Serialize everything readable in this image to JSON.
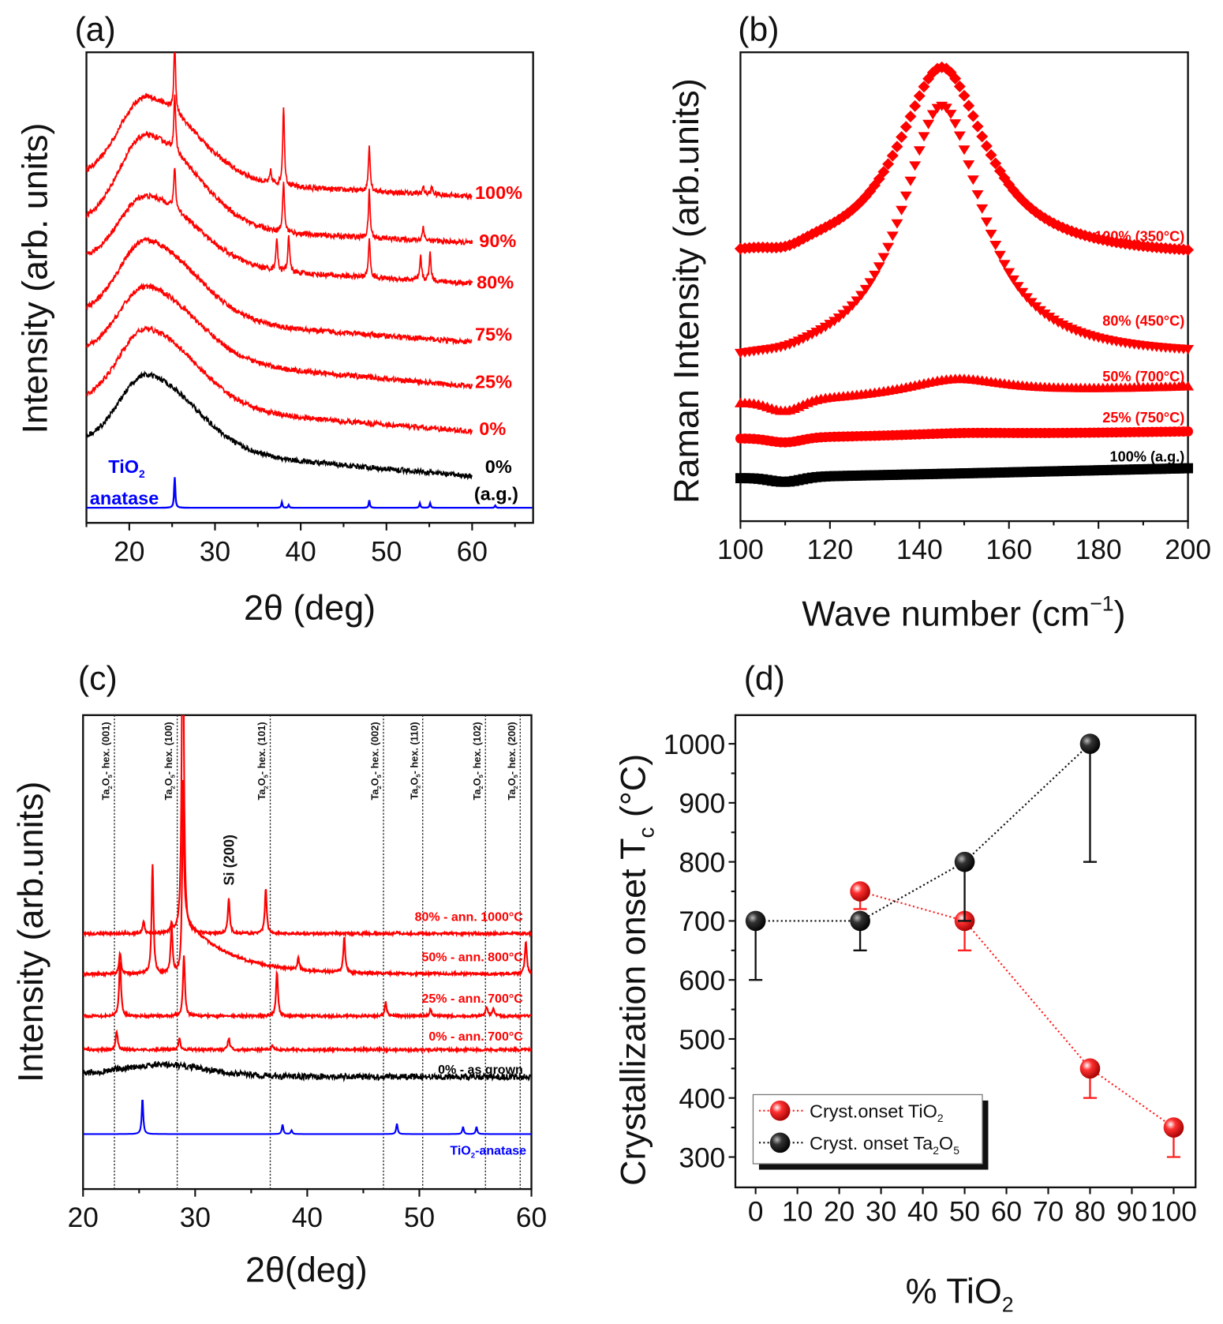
{
  "chart_data": [
    {
      "panel_label": "(a)",
      "type": "line",
      "xlabel": "2θ (deg)",
      "ylabel": "Intensity (arb. units)",
      "xlim": [
        15,
        67
      ],
      "ylim": [
        0,
        100
      ],
      "xticks": [
        20,
        30,
        40,
        50,
        60
      ],
      "series": [
        {
          "name": "100%",
          "color": "#ff0000",
          "base_start": 73.5,
          "base_end": 69.4,
          "hump_top": 90.5,
          "peaks": [
            [
              25.3,
              14
            ],
            [
              36.5,
              2.5
            ],
            [
              38.0,
              17
            ],
            [
              48.0,
              10
            ],
            [
              54.3,
              1.5
            ],
            [
              55.3,
              1.5
            ]
          ]
        },
        {
          "name": "90%",
          "color": "#ff0000",
          "base_start": 63.6,
          "base_end": 59.5,
          "hump_top": 82.4,
          "peaks": [
            [
              25.3,
              12
            ],
            [
              38.0,
              11
            ],
            [
              48.0,
              10
            ],
            [
              54.3,
              3
            ]
          ]
        },
        {
          "name": "80%",
          "color": "#ff0000",
          "base_start": 55.6,
          "base_end": 50.9,
          "hump_top": 69.5,
          "peaks": [
            [
              25.3,
              9
            ],
            [
              37.2,
              7
            ],
            [
              38.6,
              8
            ],
            [
              48.0,
              8.5
            ],
            [
              54.0,
              5
            ],
            [
              55.1,
              6
            ]
          ]
        },
        {
          "name": "75%",
          "color": "#ff0000",
          "base_start": 44.4,
          "base_end": 38.4,
          "hump_top": 60.0,
          "peaks": []
        },
        {
          "name": "25%",
          "color": "#ff0000",
          "base_start": 36.2,
          "base_end": 29.0,
          "hump_top": 50.2,
          "peaks": []
        },
        {
          "name": "0%",
          "color": "#ff0000",
          "base_start": 26.0,
          "base_end": 19.4,
          "hump_top": 41.2,
          "peaks": []
        },
        {
          "name": "0%",
          "sublabel": "(a.g.)",
          "color": "#000000",
          "base_start": 17.0,
          "base_end": 9.9,
          "hump_top": 31.4,
          "peaks": []
        }
      ],
      "reference": {
        "name": "TiO2",
        "sublabel": "anatase",
        "color": "#0000ff",
        "base": 3.2,
        "peaks": [
          [
            25.3,
            6.5
          ],
          [
            37.8,
            1.2
          ],
          [
            38.6,
            0.6
          ],
          [
            48.0,
            1.6
          ],
          [
            53.9,
            1.0
          ],
          [
            55.1,
            1.0
          ],
          [
            62.7,
            0.5
          ]
        ]
      }
    },
    {
      "panel_label": "(b)",
      "type": "scatter",
      "xlabel": "Wave number (cm-1)",
      "ylabel": "Raman Intensity (arb.units)",
      "xlim": [
        100,
        200
      ],
      "ylim": [
        0,
        100
      ],
      "xticks": [
        100,
        120,
        140,
        160,
        180,
        200
      ],
      "series": [
        {
          "name": "100% (350°C)",
          "marker": "diamond",
          "color": "#ff0000",
          "start": 55.4,
          "end": 56.0,
          "center": 145,
          "top": 96.8,
          "width": 12,
          "dip": 1.2
        },
        {
          "name": "80% (450°C)",
          "marker": "triangle-down",
          "color": "#ff0000",
          "start": 32.9,
          "end": 34.7,
          "center": 145,
          "top": 88.7,
          "width": 11,
          "dip": 0.5
        },
        {
          "name": "50% (700°C)",
          "marker": "triangle-up",
          "color": "#ff0000",
          "start": 24.8,
          "end": 28.4,
          "center": 148,
          "top": 30.2,
          "width": 14,
          "dip": 2.2
        },
        {
          "name": "25% (750°C)",
          "marker": "circle",
          "color": "#ff0000",
          "start": 17.6,
          "end": 19.1,
          "center": 150,
          "top": 18.8,
          "width": 15,
          "dip": 1.0
        },
        {
          "name": "100% (a.g.)",
          "marker": "square",
          "color": "#000000",
          "start": 9.2,
          "end": 11.3,
          "center": 150,
          "top": 10.2,
          "width": 30,
          "dip": 1.0
        }
      ]
    },
    {
      "panel_label": "(c)",
      "type": "line",
      "xlabel": "2θ(deg)",
      "ylabel": "Intensity (arb.units)",
      "xlim": [
        20,
        60
      ],
      "ylim": [
        0,
        100
      ],
      "xticks": [
        20,
        30,
        40,
        50,
        60
      ],
      "reflections": [
        {
          "two_theta": 22.8,
          "label": "Ta2O5- hex. (001)"
        },
        {
          "two_theta": 28.4,
          "label": "Ta2O5- hex. (100)"
        },
        {
          "two_theta": 36.7,
          "label": "Ta2O5- hex. (101)"
        },
        {
          "two_theta": 46.8,
          "label": "Ta2O5- hex. (002)"
        },
        {
          "two_theta": 50.3,
          "label": "Ta2O5- hex. (110)"
        },
        {
          "two_theta": 55.9,
          "label": "Ta2O5- hex. (102)"
        },
        {
          "two_theta": 59.0,
          "label": "Ta2O5- hex. (200)"
        }
      ],
      "annotation": {
        "label": "Si (200)",
        "two_theta": 33.0
      },
      "series": [
        {
          "name": "80% - ann. 1000°C",
          "color": "#ff0000",
          "base": 53.9,
          "peaks": [
            [
              25.4,
              2.5
            ],
            [
              27.9,
              1.6
            ],
            [
              28.9,
              80
            ],
            [
              33.0,
              7.5
            ],
            [
              36.3,
              9.5
            ],
            [
              48.0,
              0.4
            ]
          ]
        },
        {
          "name": "50% - ann. 800°C",
          "color": "#ff0000",
          "base": 45.4,
          "tail": [
            28.9,
            12,
            4
          ],
          "peaks": [
            [
              23.3,
              4.5
            ],
            [
              26.2,
              23
            ],
            [
              27.9,
              10
            ],
            [
              28.9,
              30
            ],
            [
              39.2,
              2.5
            ],
            [
              43.3,
              7.5
            ],
            [
              59.5,
              7
            ]
          ]
        },
        {
          "name": "25% - ann. 700°C",
          "color": "#ff0000",
          "base": 36.5,
          "peaks": [
            [
              23.3,
              12
            ],
            [
              29.0,
              13
            ],
            [
              37.3,
              9.5
            ],
            [
              47.0,
              3
            ],
            [
              51.0,
              1.5
            ],
            [
              56.0,
              2
            ],
            [
              56.6,
              1.5
            ]
          ]
        },
        {
          "name": "0% - ann. 700°C",
          "color": "#ff0000",
          "base": 29.4,
          "peaks": [
            [
              23.0,
              4
            ],
            [
              28.6,
              2.5
            ],
            [
              33.0,
              2.5
            ],
            [
              36.9,
              1
            ]
          ]
        },
        {
          "name": "0% - as grown",
          "color": "#000000",
          "base": 23.7,
          "hump": [
            27,
            2.5,
            6
          ],
          "peaks": []
        }
      ],
      "reference": {
        "name": "TiO2-anatase",
        "color": "#0000ff",
        "base": 11.6,
        "peaks": [
          [
            25.3,
            7.5
          ],
          [
            37.8,
            2
          ],
          [
            38.6,
            0.8
          ],
          [
            48.0,
            2.2
          ],
          [
            53.9,
            1.5
          ],
          [
            55.1,
            1.5
          ]
        ]
      }
    },
    {
      "panel_label": "(d)",
      "type": "scatter",
      "xlabel": "% TiO2",
      "ylabel": "Crystallization onset T_c (°C)",
      "xlim": [
        -5,
        105
      ],
      "ylim": [
        250,
        1050
      ],
      "xticks": [
        0,
        10,
        20,
        30,
        40,
        50,
        60,
        70,
        80,
        90,
        100
      ],
      "yticks": [
        300,
        400,
        500,
        600,
        700,
        800,
        900,
        1000
      ],
      "legend": "bottom-left",
      "series": [
        {
          "name": "Cryst.onset TiO2",
          "color": "#ff0000",
          "points": [
            {
              "x": 25,
              "y": 750,
              "err_low": 720
            },
            {
              "x": 50,
              "y": 700,
              "err_low": 650
            },
            {
              "x": 80,
              "y": 450,
              "err_low": 400
            },
            {
              "x": 100,
              "y": 350,
              "err_low": 300
            }
          ]
        },
        {
          "name": "Cryst. onset Ta2O5",
          "color": "#000000",
          "points": [
            {
              "x": 0,
              "y": 700,
              "err_low": 600
            },
            {
              "x": 25,
              "y": 700,
              "err_low": 650
            },
            {
              "x": 50,
              "y": 800,
              "err_low": 700
            },
            {
              "x": 80,
              "y": 1000,
              "err_low": 800
            }
          ]
        }
      ]
    }
  ]
}
